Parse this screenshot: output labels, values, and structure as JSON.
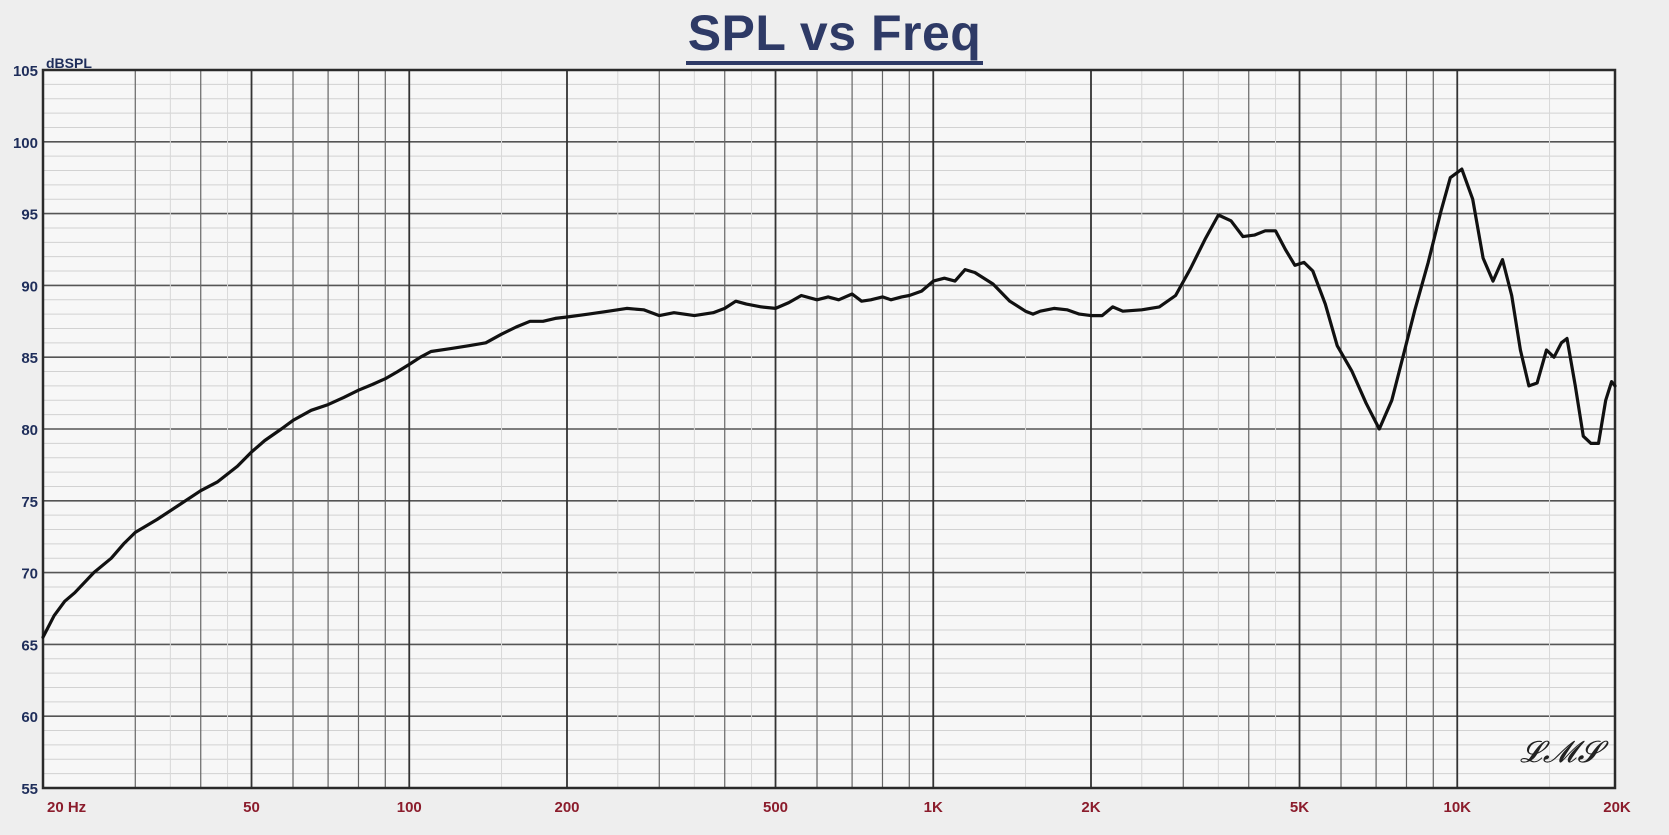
{
  "chart_data": {
    "type": "line",
    "title": "SPL vs Freq",
    "ylabel": "dBSPL",
    "xlabel": "",
    "xscale": "log",
    "xlim": [
      20,
      20000
    ],
    "ylim": [
      55,
      105
    ],
    "grid": true,
    "y_ticks": [
      "105",
      "100",
      "95",
      "90",
      "85",
      "80",
      "75",
      "70",
      "65",
      "60",
      "55"
    ],
    "x_ticks": [
      {
        "value": 20,
        "label": "20  Hz"
      },
      {
        "value": 50,
        "label": "50"
      },
      {
        "value": 100,
        "label": "100"
      },
      {
        "value": 200,
        "label": "200"
      },
      {
        "value": 500,
        "label": "500"
      },
      {
        "value": 1000,
        "label": "1K"
      },
      {
        "value": 2000,
        "label": "2K"
      },
      {
        "value": 5000,
        "label": "5K"
      },
      {
        "value": 10000,
        "label": "10K"
      },
      {
        "value": 20000,
        "label": "20K"
      }
    ],
    "series": [
      {
        "color": "#111111",
        "points": [
          [
            20,
            65.5
          ],
          [
            21,
            67.0
          ],
          [
            22,
            68.0
          ],
          [
            23,
            68.6
          ],
          [
            25,
            70.0
          ],
          [
            27,
            71.0
          ],
          [
            28.5,
            72.0
          ],
          [
            30,
            72.8
          ],
          [
            33,
            73.7
          ],
          [
            36,
            74.6
          ],
          [
            40,
            75.7
          ],
          [
            43,
            76.3
          ],
          [
            47,
            77.4
          ],
          [
            50,
            78.4
          ],
          [
            53,
            79.2
          ],
          [
            57,
            80.0
          ],
          [
            60,
            80.6
          ],
          [
            65,
            81.3
          ],
          [
            70,
            81.7
          ],
          [
            75,
            82.2
          ],
          [
            80,
            82.7
          ],
          [
            85,
            83.1
          ],
          [
            90,
            83.5
          ],
          [
            95,
            84.0
          ],
          [
            100,
            84.5
          ],
          [
            105,
            85.0
          ],
          [
            110,
            85.4
          ],
          [
            120,
            85.6
          ],
          [
            130,
            85.8
          ],
          [
            140,
            86.0
          ],
          [
            150,
            86.6
          ],
          [
            160,
            87.1
          ],
          [
            170,
            87.5
          ],
          [
            180,
            87.5
          ],
          [
            190,
            87.7
          ],
          [
            200,
            87.8
          ],
          [
            220,
            88.0
          ],
          [
            240,
            88.2
          ],
          [
            260,
            88.4
          ],
          [
            280,
            88.3
          ],
          [
            300,
            87.9
          ],
          [
            320,
            88.1
          ],
          [
            350,
            87.9
          ],
          [
            380,
            88.1
          ],
          [
            400,
            88.4
          ],
          [
            420,
            88.9
          ],
          [
            440,
            88.7
          ],
          [
            470,
            88.5
          ],
          [
            500,
            88.4
          ],
          [
            530,
            88.8
          ],
          [
            560,
            89.3
          ],
          [
            600,
            89.0
          ],
          [
            630,
            89.2
          ],
          [
            660,
            89.0
          ],
          [
            700,
            89.4
          ],
          [
            730,
            88.9
          ],
          [
            760,
            89.0
          ],
          [
            800,
            89.2
          ],
          [
            830,
            89.0
          ],
          [
            870,
            89.2
          ],
          [
            900,
            89.3
          ],
          [
            950,
            89.6
          ],
          [
            1000,
            90.3
          ],
          [
            1050,
            90.5
          ],
          [
            1100,
            90.3
          ],
          [
            1150,
            91.1
          ],
          [
            1200,
            90.9
          ],
          [
            1300,
            90.1
          ],
          [
            1400,
            88.9
          ],
          [
            1500,
            88.2
          ],
          [
            1550,
            88.0
          ],
          [
            1600,
            88.2
          ],
          [
            1700,
            88.4
          ],
          [
            1800,
            88.3
          ],
          [
            1900,
            88.0
          ],
          [
            2000,
            87.9
          ],
          [
            2100,
            87.9
          ],
          [
            2200,
            88.5
          ],
          [
            2300,
            88.2
          ],
          [
            2500,
            88.3
          ],
          [
            2700,
            88.5
          ],
          [
            2900,
            89.3
          ],
          [
            3100,
            91.2
          ],
          [
            3300,
            93.2
          ],
          [
            3500,
            94.9
          ],
          [
            3700,
            94.5
          ],
          [
            3900,
            93.4
          ],
          [
            4100,
            93.5
          ],
          [
            4300,
            93.8
          ],
          [
            4500,
            93.8
          ],
          [
            4700,
            92.5
          ],
          [
            4900,
            91.4
          ],
          [
            5100,
            91.6
          ],
          [
            5300,
            91.0
          ],
          [
            5600,
            88.7
          ],
          [
            5900,
            85.8
          ],
          [
            6300,
            84.0
          ],
          [
            6700,
            81.8
          ],
          [
            7100,
            80.0
          ],
          [
            7500,
            82.0
          ],
          [
            7900,
            85.2
          ],
          [
            8300,
            88.3
          ],
          [
            8800,
            91.6
          ],
          [
            9300,
            95.1
          ],
          [
            9700,
            97.5
          ],
          [
            10200,
            98.1
          ],
          [
            10700,
            96.0
          ],
          [
            11200,
            91.9
          ],
          [
            11700,
            90.3
          ],
          [
            12200,
            91.8
          ],
          [
            12700,
            89.3
          ],
          [
            13200,
            85.5
          ],
          [
            13700,
            83.0
          ],
          [
            14200,
            83.2
          ],
          [
            14800,
            85.5
          ],
          [
            15300,
            85.0
          ],
          [
            15800,
            86.0
          ],
          [
            16200,
            86.3
          ],
          [
            16800,
            83.0
          ],
          [
            17400,
            79.5
          ],
          [
            18000,
            79.0
          ],
          [
            18600,
            79.0
          ],
          [
            19200,
            82.0
          ],
          [
            19700,
            83.3
          ],
          [
            20000,
            83.0
          ]
        ]
      }
    ]
  },
  "watermark": "LMS"
}
